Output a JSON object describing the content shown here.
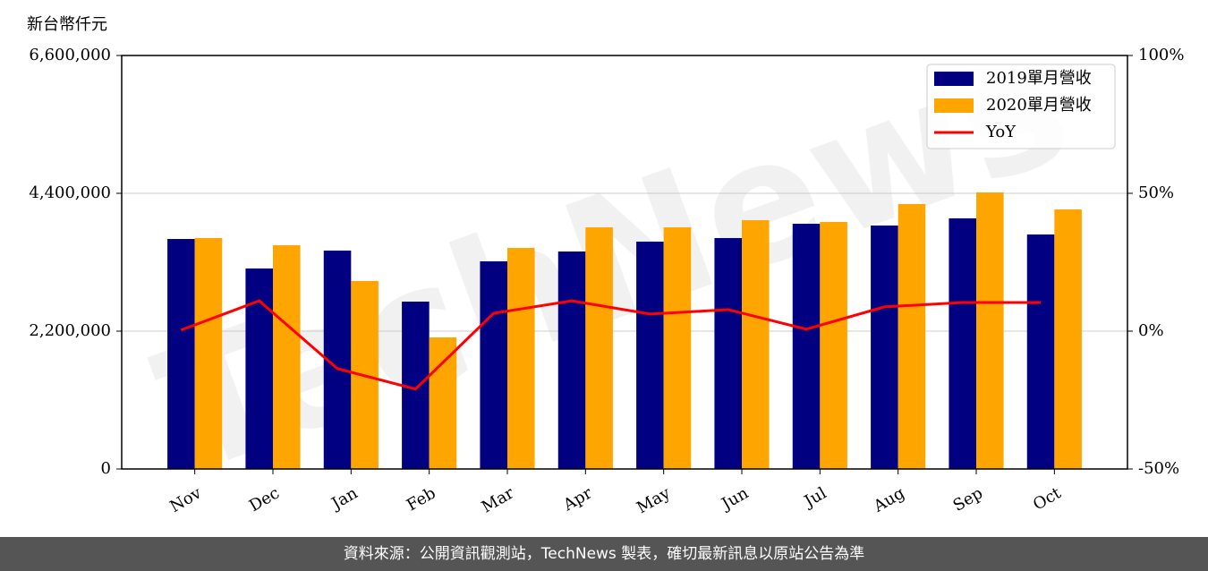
{
  "chart_data": {
    "type": "bar",
    "y_label": "新台幣仟元",
    "watermark": "TechNews",
    "categories": [
      "Nov",
      "Dec",
      "Jan",
      "Feb",
      "Mar",
      "Apr",
      "May",
      "Jun",
      "Jul",
      "Aug",
      "Sep",
      "Oct"
    ],
    "series": [
      {
        "name": "2019單月營收",
        "color": "#000080",
        "values": [
          3671000,
          3200000,
          3486000,
          2671000,
          3314000,
          3471000,
          3629000,
          3686000,
          3914000,
          3886000,
          4000000,
          3743000
        ]
      },
      {
        "name": "2020單月營收",
        "color": "#ffa500",
        "values": [
          3686000,
          3571000,
          3000000,
          2100000,
          3529000,
          3857000,
          3857000,
          3971000,
          3943000,
          4229000,
          4414000,
          4143000
        ]
      },
      {
        "name": "YoY",
        "color": "#ff0000",
        "axis": "y2",
        "type": "line",
        "values": [
          0.4,
          11,
          -13.6,
          -21,
          6.5,
          11,
          6.2,
          7.8,
          0.7,
          8.8,
          10.4,
          10.4
        ]
      }
    ],
    "ylim": [
      0,
      6600000
    ],
    "yticks": [
      0,
      {
        "value": 2200000,
        "label": "2,200,000"
      },
      {
        "value": 4400000,
        "label": "4,400,000"
      },
      {
        "value": 6600000,
        "label": "6,600,000"
      }
    ],
    "y2lim": [
      -50,
      100
    ],
    "y2ticks": [
      {
        "value": -50,
        "label": "-50%"
      },
      {
        "value": 0,
        "label": "0%"
      },
      {
        "value": 50,
        "label": "50%"
      },
      {
        "value": 100,
        "label": "100%"
      }
    ],
    "grid": true,
    "legend": "upper right"
  },
  "footer": "資料來源：公開資訊觀測站，TechNews 製表，確切最新訊息以原站公告為準"
}
